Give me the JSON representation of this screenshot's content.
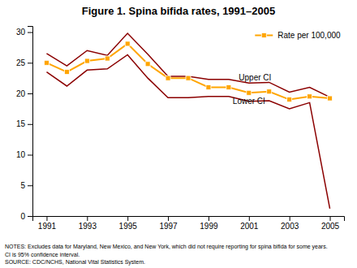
{
  "chart_data": {
    "type": "line",
    "title": "Figure 1. Spina bifida rates, 1991–2005",
    "x": [
      1991,
      1992,
      1993,
      1994,
      1995,
      1996,
      1997,
      1998,
      1999,
      2000,
      2001,
      2002,
      2003,
      2004,
      2005
    ],
    "series": [
      {
        "name": "Rate per 100,000",
        "color": "#FFA500",
        "marker": "square",
        "values": [
          25.0,
          23.5,
          25.3,
          25.7,
          28.1,
          24.8,
          22.5,
          22.5,
          21.0,
          21.0,
          20.1,
          20.3,
          19.0,
          19.5,
          19.2
        ]
      },
      {
        "color": "#8B0000",
        "values": [
          26.5,
          24.5,
          27.0,
          26.2,
          29.8,
          26.4,
          22.8,
          22.8,
          22.3,
          22.3,
          21.7,
          21.8,
          20.2,
          21.0,
          19.4
        ]
      },
      {
        "color": "#8B0000",
        "values": [
          23.5,
          21.2,
          23.8,
          24.0,
          26.3,
          22.5,
          19.3,
          19.3,
          19.5,
          19.5,
          18.7,
          18.8,
          17.5,
          18.5,
          1.2
        ]
      }
    ],
    "xlim": [
      1990.3,
      2005.7
    ],
    "xticks": [
      1991,
      1993,
      1995,
      1997,
      1999,
      2001,
      2003,
      2005
    ],
    "ylim": [
      0,
      31
    ],
    "yticks": [
      0,
      5,
      10,
      15,
      20,
      25,
      30
    ],
    "annotations": [
      {
        "text": "Upper CI",
        "x": 2000.5,
        "y": 22.6
      },
      {
        "text": "Lower CI",
        "x": 2000.2,
        "y": 18.8
      }
    ],
    "notes": [
      "NOTES:  Excludes data for Maryland, New Mexico, and New York, which did not require reporting for spina bifida for some years.",
      "CI is 95% confidence interval.",
      "SOURCE:  CDC/NCHS, National Vital Statistics System."
    ],
    "legend": "upper right",
    "grid": false
  }
}
